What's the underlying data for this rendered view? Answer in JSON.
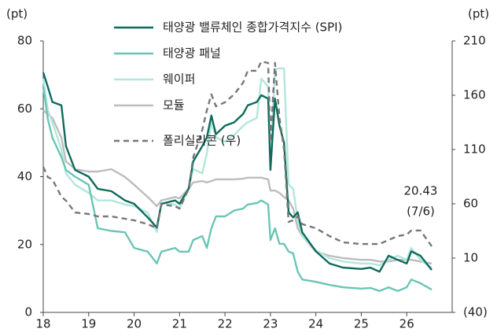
{
  "chart_data": {
    "type": "line",
    "y_unit_label": "(pt)",
    "y2_unit_label": "(pt)",
    "annotations": [
      "20.43",
      "(7/6)"
    ],
    "legend": "upper center",
    "x": [
      18.0,
      18.1,
      18.2,
      18.4,
      18.5,
      18.7,
      19.0,
      19.2,
      19.5,
      19.8,
      20.0,
      20.3,
      20.5,
      20.6,
      20.9,
      21.0,
      21.2,
      21.3,
      21.5,
      21.6,
      21.7,
      21.8,
      22.0,
      22.2,
      22.4,
      22.5,
      22.7,
      22.8,
      22.95,
      23.0,
      23.1,
      23.2,
      23.3,
      23.4,
      23.5,
      23.6,
      23.7,
      24.0,
      24.3,
      24.6,
      25.0,
      25.2,
      25.4,
      25.6,
      25.8,
      26.0,
      26.1,
      26.3,
      26.55
    ],
    "xlim": [
      18,
      27
    ],
    "xticks": [
      18,
      19,
      20,
      21,
      22,
      23,
      24,
      25,
      26
    ],
    "ylim": [
      0,
      80
    ],
    "yticks": [
      0,
      20,
      40,
      60,
      80
    ],
    "y2lim": [
      -40,
      210
    ],
    "y2ticks": [
      {
        "value": -40,
        "label": "(40)"
      },
      10,
      60,
      110,
      160,
      210
    ],
    "series": [
      {
        "name": "태양광 밸류체인 종합가격지수 (SPI)",
        "color": "#0e6b5c",
        "style": "solid",
        "values": [
          70.7,
          66.5,
          62,
          61,
          49,
          42,
          40,
          36.4,
          35.7,
          33,
          32,
          28,
          25,
          32,
          33,
          32,
          36.5,
          44.5,
          49,
          51.5,
          58,
          52.5,
          55,
          56,
          58.5,
          61,
          62,
          64,
          63,
          42,
          63,
          55,
          50,
          29.5,
          28,
          29.5,
          23.6,
          18,
          14.4,
          13.2,
          12.8,
          13.2,
          12,
          16.7,
          15.5,
          14.4,
          18,
          16.7,
          12.5
        ]
      },
      {
        "name": "태양광 패널",
        "color": "#6cc5b5",
        "style": "solid",
        "values": [
          66.5,
          57,
          51.5,
          45.7,
          42,
          40,
          37.6,
          24.8,
          24,
          23.6,
          19,
          17.9,
          14.4,
          17.9,
          19,
          17.9,
          17.9,
          21.3,
          22.5,
          19,
          24.8,
          28.3,
          28.3,
          30,
          30.6,
          31.8,
          32.2,
          33,
          31.8,
          21.3,
          24.8,
          20.2,
          20.2,
          17.9,
          17.4,
          12,
          9.7,
          9,
          8.1,
          7.4,
          7,
          7.2,
          6.3,
          7.4,
          6.3,
          7.4,
          9.7,
          8.6,
          6.7
        ]
      },
      {
        "name": "웨이퍼",
        "color": "#b3e6dc",
        "style": "solid",
        "values": [
          68.9,
          59.6,
          56,
          48,
          41,
          37.6,
          35.2,
          33,
          33,
          31.8,
          31.3,
          29.4,
          23.7,
          32.2,
          31.8,
          30.6,
          36.4,
          42.2,
          41,
          46.8,
          56,
          51.5,
          50.3,
          52.2,
          55,
          56,
          57.3,
          68.9,
          66.5,
          44.5,
          71.7,
          71.9,
          71.9,
          37.6,
          36.4,
          27.1,
          22.5,
          18.3,
          16,
          15,
          14.4,
          14.4,
          13.9,
          15.5,
          16.7,
          15.5,
          19,
          15.5,
          13.2
        ]
      },
      {
        "name": "모듈",
        "color": "#bdbdbd",
        "style": "solid",
        "values": [
          59.6,
          58.4,
          57.3,
          51.5,
          44.5,
          42.2,
          41.5,
          41.5,
          42.2,
          39.9,
          37.6,
          34,
          31.3,
          33,
          34,
          33.6,
          36.4,
          38.3,
          38.7,
          38.3,
          38.7,
          39.2,
          39.2,
          39.2,
          39.4,
          39.7,
          39.7,
          39.7,
          39.2,
          35.9,
          35.9,
          35.2,
          34,
          33,
          30.6,
          24.8,
          22.5,
          17.9,
          16.7,
          16,
          15.5,
          15.5,
          15,
          15,
          15.5,
          15.5,
          15.5,
          15,
          14.4
        ]
      },
      {
        "name": "폴리실리콘 (우)",
        "color": "#777777",
        "style": "dashed",
        "axis": "y2",
        "values": [
          94,
          84.6,
          82.5,
          66.5,
          62.9,
          52,
          50.6,
          48.4,
          48.4,
          46.2,
          44.8,
          41.2,
          37.5,
          59.3,
          57.8,
          55.6,
          73.8,
          102.7,
          128,
          146,
          160.7,
          149.8,
          153.5,
          160.7,
          171.6,
          182.5,
          182.5,
          191.1,
          189.7,
          117.2,
          189.7,
          139,
          110,
          43.3,
          44.8,
          48.4,
          41.2,
          37.5,
          30.3,
          24.5,
          23,
          23,
          23,
          26.7,
          30.3,
          31.7,
          35.4,
          35.4,
          20.9
        ]
      }
    ]
  }
}
